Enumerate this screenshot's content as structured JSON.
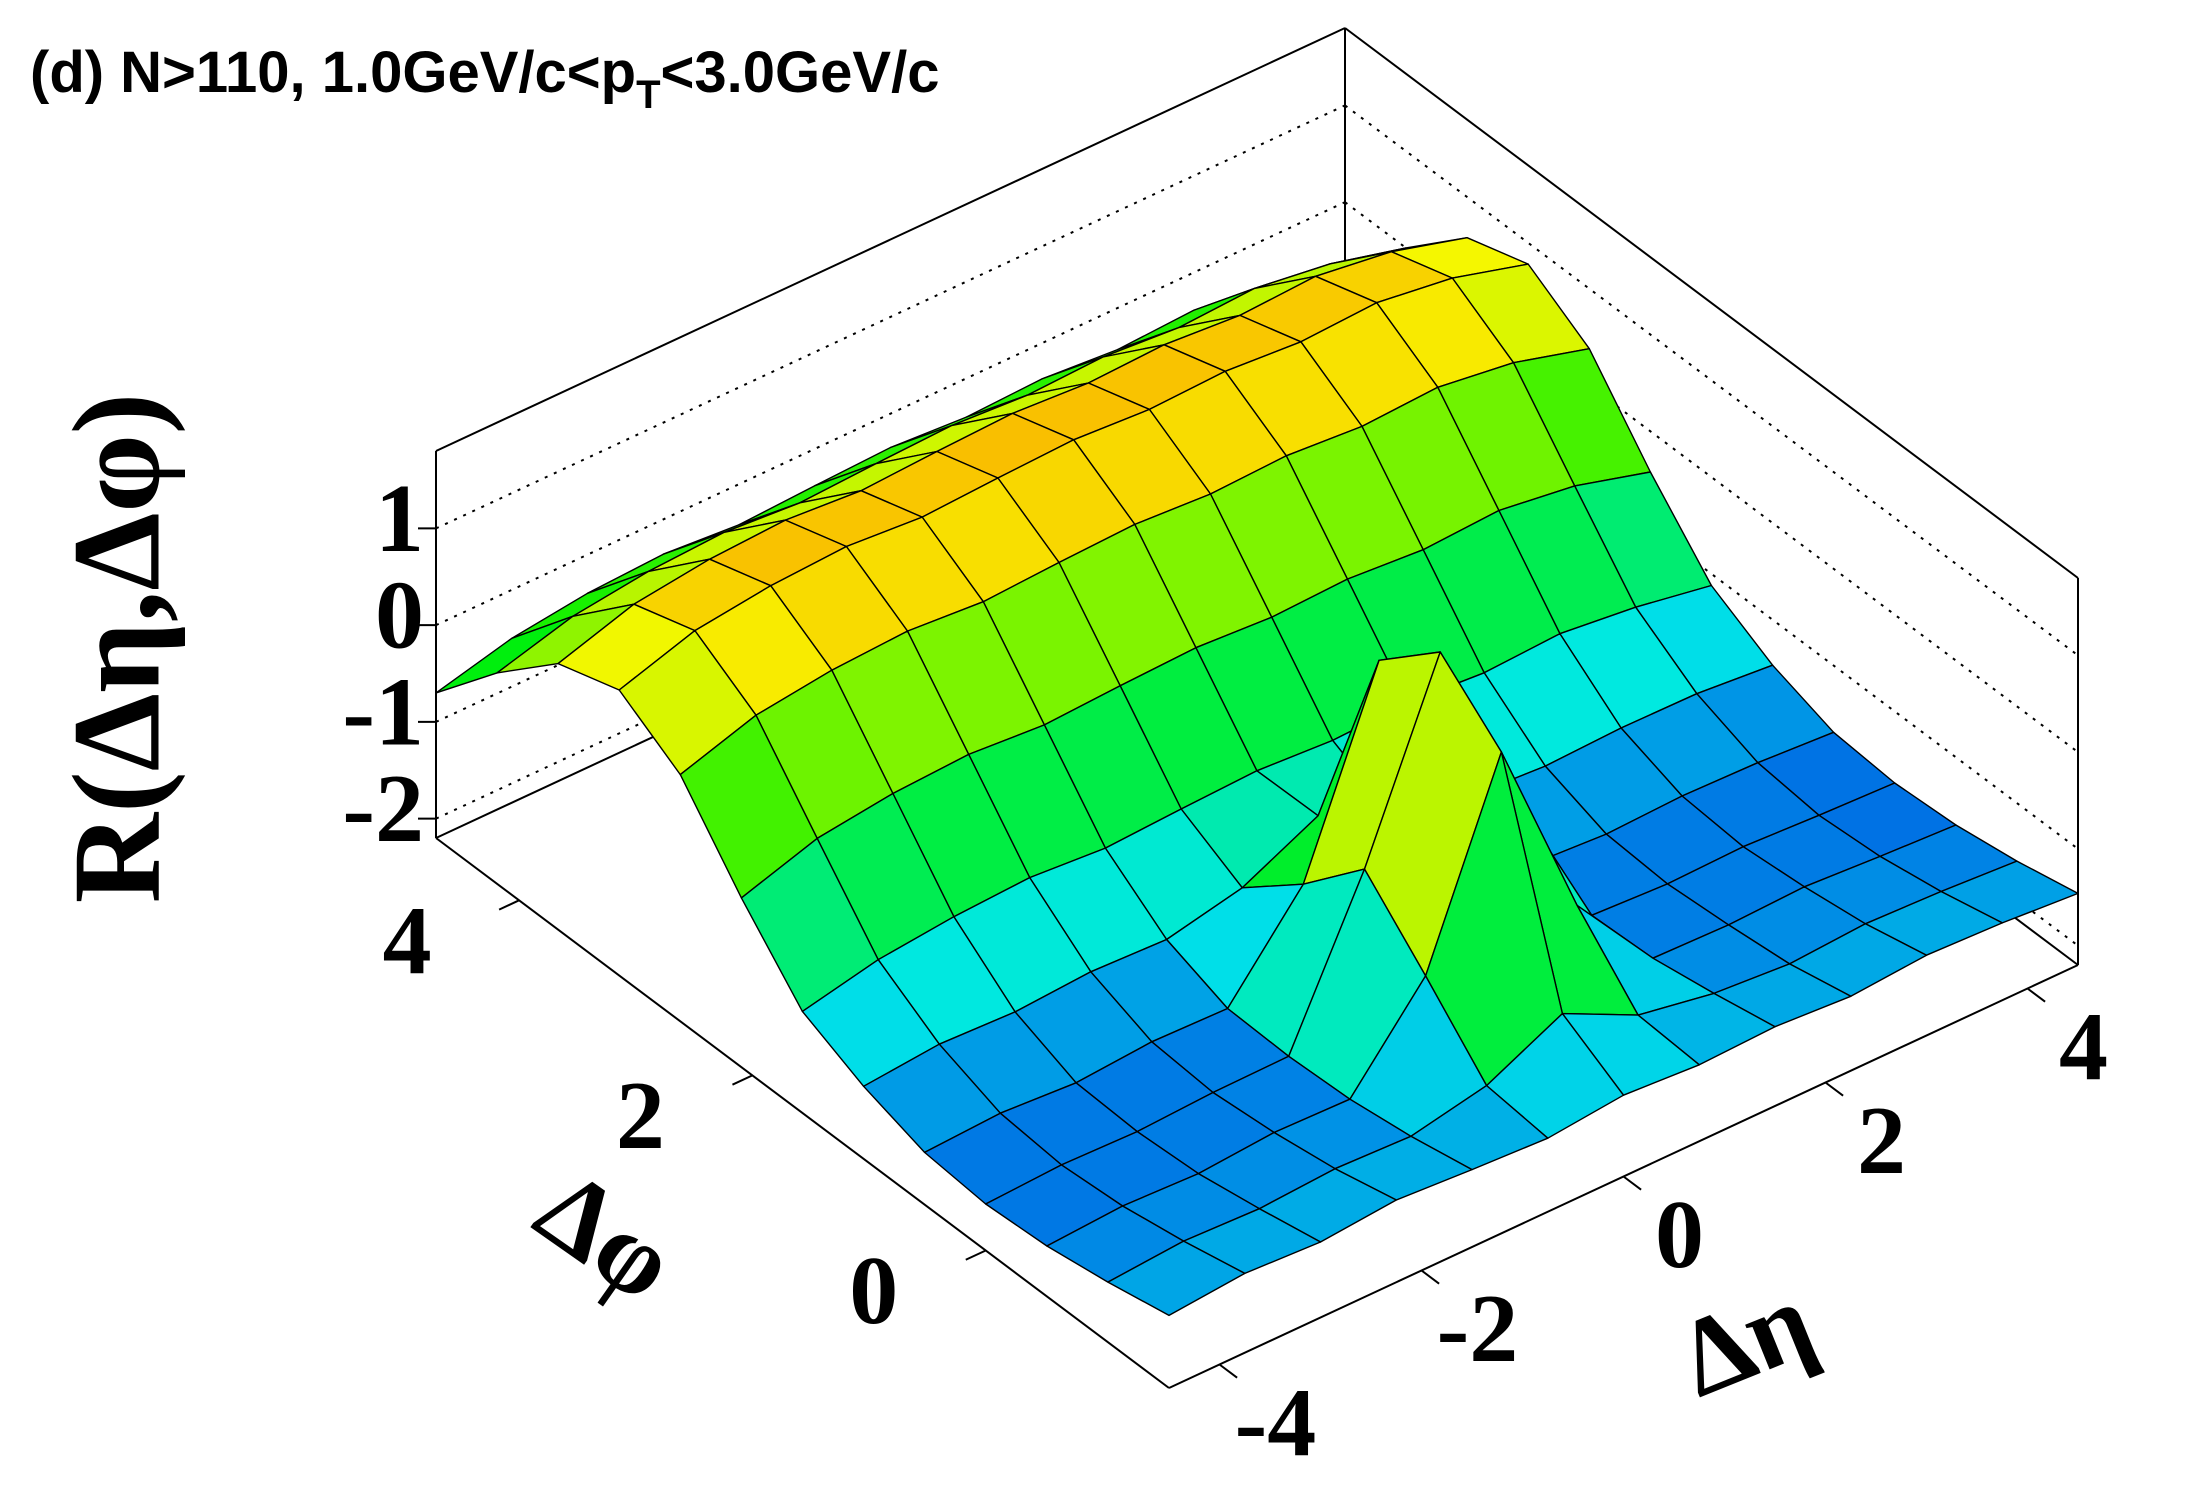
{
  "chart_data": {
    "type": "surface3d",
    "title": [
      "(d) N>110, 1.0GeV/c<p",
      "T",
      "<3.0GeV/c"
    ],
    "xlabel": "Δη",
    "ylabel": "Δφ",
    "zlabel": "R(Δη,Δφ)",
    "xlim": [
      -4.5,
      4.5
    ],
    "ylim": [
      -1.571,
      4.712
    ],
    "zlim": [
      -2.2,
      1.8
    ],
    "xticks": [
      -4,
      -2,
      0,
      2,
      4
    ],
    "yticks": [
      0,
      2,
      4
    ],
    "zticks": [
      -2,
      -1,
      0,
      1
    ],
    "x": [
      -4.5,
      -3.75,
      -3,
      -2.25,
      -1.5,
      -0.75,
      0,
      0.75,
      1.5,
      2.25,
      3,
      3.75,
      4.5
    ],
    "y": [
      -1.571,
      -1.047,
      -0.524,
      0,
      0.524,
      1.047,
      1.571,
      2.094,
      2.618,
      3.142,
      3.665,
      4.189,
      4.712
    ],
    "z": [
      [
        -1.45,
        -1.38,
        -1.42,
        -1.35,
        -1.4,
        -1.44,
        -1.36,
        -1.41,
        -1.38,
        -1.43,
        -1.37,
        -1.4,
        -1.46
      ],
      [
        -1.58,
        -1.52,
        -1.55,
        -1.5,
        -1.53,
        -1.37,
        -0.99,
        -1.37,
        -1.51,
        -1.57,
        -1.52,
        -1.55,
        -1.6
      ],
      [
        -1.68,
        -1.63,
        -1.66,
        -1.6,
        -1.62,
        -0.71,
        1.24,
        -0.71,
        -1.62,
        -1.64,
        -1.61,
        -1.66,
        -1.7
      ],
      [
        -1.72,
        -1.68,
        -1.7,
        -1.66,
        -1.65,
        -0.08,
        1.8,
        -0.08,
        -1.65,
        -1.69,
        -1.67,
        -1.71,
        -1.74
      ],
      [
        -1.66,
        -1.62,
        -1.67,
        -1.61,
        -1.63,
        -0.71,
        1.24,
        -0.71,
        -1.6,
        -1.65,
        -1.62,
        -1.64,
        -1.69
      ],
      [
        -1.45,
        -1.38,
        -1.41,
        -1.36,
        -1.39,
        -1.22,
        -0.84,
        -1.22,
        -1.37,
        -1.42,
        -1.39,
        -1.4,
        -1.47
      ],
      [
        -1.15,
        -0.98,
        -0.9,
        -0.86,
        -0.92,
        -0.88,
        -0.85,
        -0.9,
        -0.87,
        -0.93,
        -0.89,
        -0.98,
        -1.12
      ],
      [
        -0.45,
        -0.2,
        -0.1,
        -0.06,
        -0.12,
        -0.08,
        -0.05,
        -0.1,
        -0.07,
        -0.13,
        -0.09,
        -0.2,
        -0.42
      ],
      [
        0.35,
        0.6,
        0.7,
        0.74,
        0.68,
        0.72,
        0.75,
        0.7,
        0.73,
        0.67,
        0.71,
        0.6,
        0.38
      ],
      [
        0.75,
        1.0,
        1.1,
        1.14,
        1.08,
        1.12,
        1.15,
        1.1,
        1.13,
        1.07,
        1.11,
        1.0,
        0.78
      ],
      [
        0.55,
        0.8,
        0.9,
        0.94,
        0.88,
        0.92,
        0.95,
        0.9,
        0.93,
        0.87,
        0.91,
        0.8,
        0.58
      ],
      [
        -0.02,
        0.2,
        0.3,
        0.34,
        0.28,
        0.32,
        0.35,
        0.3,
        0.33,
        0.27,
        0.31,
        0.2,
        0.0
      ],
      [
        -0.7,
        -0.5,
        -0.4,
        -0.36,
        -0.42,
        -0.38,
        -0.35,
        -0.4,
        -0.37,
        -0.43,
        -0.39,
        -0.5,
        -0.68
      ]
    ]
  }
}
